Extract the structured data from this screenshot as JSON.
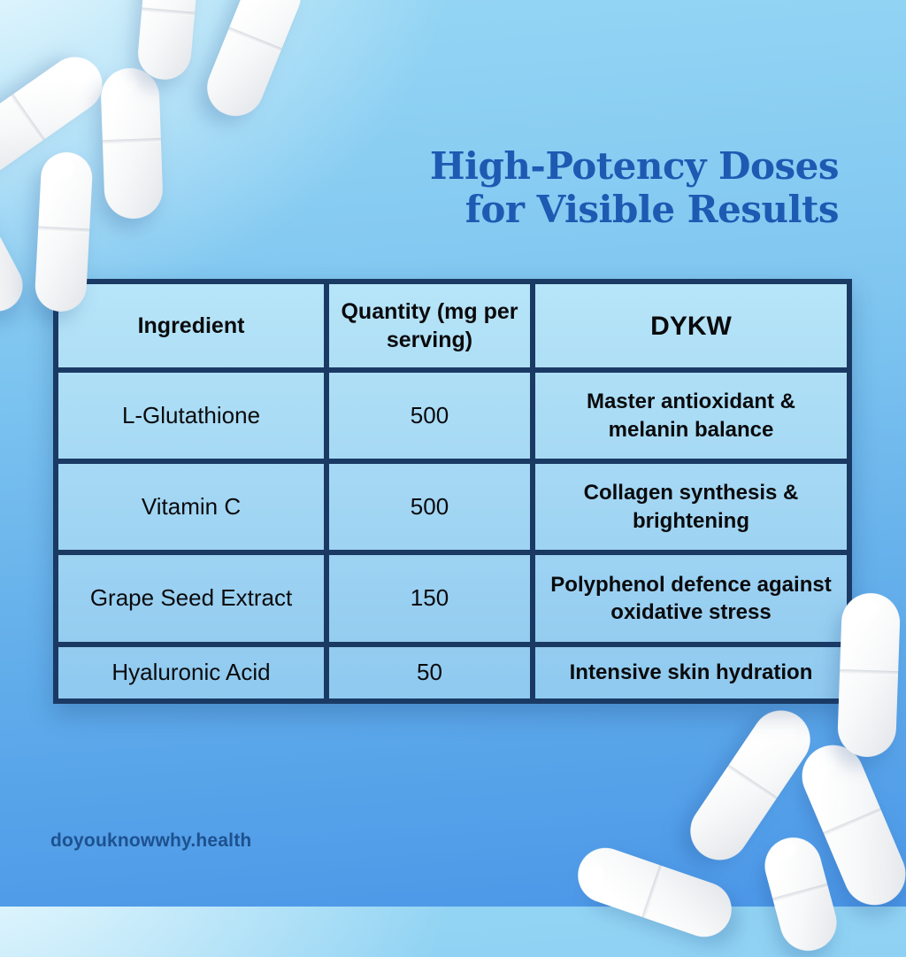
{
  "title": {
    "line1": "High-Potency Doses",
    "line2": "for Visible Results"
  },
  "table": {
    "headers": [
      "Ingredient",
      "Quantity (mg per serving)",
      "DYKW"
    ],
    "rows": [
      {
        "ingredient": "L-Glutathione",
        "quantity": "500",
        "dykw": "Master antioxidant & melanin balance"
      },
      {
        "ingredient": "Vitamin C",
        "quantity": "500",
        "dykw": "Collagen synthesis & brightening"
      },
      {
        "ingredient": "Grape Seed Extract",
        "quantity": "150",
        "dykw": "Polyphenol defence against oxidative stress"
      },
      {
        "ingredient": "Hyaluronic Acid",
        "quantity": "50",
        "dykw": "Intensive skin hydration"
      }
    ]
  },
  "footer": {
    "brand": "doyouknowwhy.health"
  },
  "decor": {
    "element": "white-capsule-pills",
    "count": 11
  },
  "colors": {
    "title_blue": "#1d5ab2",
    "table_border_navy": "#1a3a64",
    "cell_blue_top": "#b7e5f8",
    "cell_blue_bottom": "#92cbf0",
    "brand_blue": "#1d518f",
    "background_top": "#d9f3fb",
    "background_bottom": "#4b97e8",
    "text_black": "#0a0a0c"
  }
}
